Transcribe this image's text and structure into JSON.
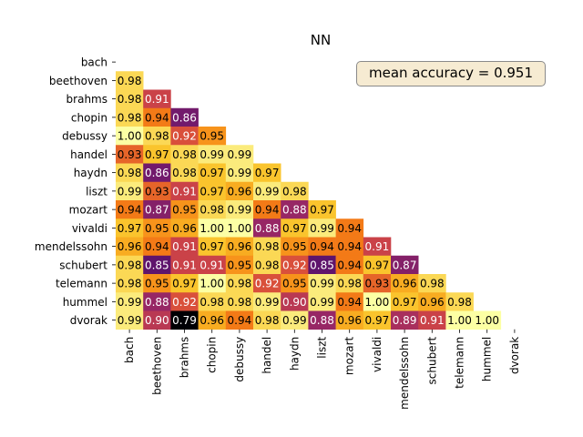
{
  "chart_data": {
    "type": "heatmap",
    "title": "NN",
    "xlabel": "",
    "ylabel": "",
    "labels": [
      "bach",
      "beethoven",
      "brahms",
      "chopin",
      "debussy",
      "handel",
      "haydn",
      "liszt",
      "mozart",
      "vivaldi",
      "mendelssohn",
      "schubert",
      "telemann",
      "hummel",
      "dvorak"
    ],
    "matrix": [
      [],
      [
        0.98
      ],
      [
        0.98,
        0.91
      ],
      [
        0.98,
        0.94,
        0.86
      ],
      [
        1.0,
        0.98,
        0.92,
        0.95
      ],
      [
        0.93,
        0.97,
        0.98,
        0.99,
        0.99
      ],
      [
        0.98,
        0.86,
        0.98,
        0.97,
        0.99,
        0.97
      ],
      [
        0.99,
        0.93,
        0.91,
        0.97,
        0.96,
        0.99,
        0.98
      ],
      [
        0.94,
        0.87,
        0.95,
        0.98,
        0.99,
        0.94,
        0.88,
        0.97
      ],
      [
        0.97,
        0.95,
        0.96,
        1.0,
        1.0,
        0.88,
        0.97,
        0.99,
        0.94
      ],
      [
        0.96,
        0.94,
        0.91,
        0.97,
        0.96,
        0.98,
        0.95,
        0.94,
        0.94,
        0.91
      ],
      [
        0.98,
        0.85,
        0.91,
        0.91,
        0.95,
        0.98,
        0.92,
        0.85,
        0.94,
        0.97,
        0.87
      ],
      [
        0.98,
        0.95,
        0.97,
        1.0,
        0.98,
        0.92,
        0.95,
        0.99,
        0.98,
        0.93,
        0.96,
        0.98
      ],
      [
        0.99,
        0.88,
        0.92,
        0.98,
        0.98,
        0.99,
        0.9,
        0.99,
        0.94,
        1.0,
        0.97,
        0.96,
        0.98
      ],
      [
        0.99,
        0.9,
        0.79,
        0.96,
        0.94,
        0.98,
        0.99,
        0.88,
        0.96,
        0.97,
        0.89,
        0.91,
        1.0,
        1.0
      ]
    ],
    "colormap": "inferno",
    "grid": false,
    "legend": "none",
    "annotation": "mean accuracy = 0.951"
  }
}
